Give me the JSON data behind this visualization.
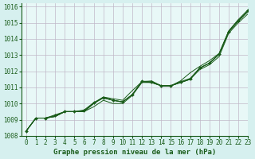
{
  "xlabel": "Graphe pression niveau de la mer (hPa)",
  "xlim": [
    -0.5,
    23
  ],
  "ylim": [
    1008,
    1016.2
  ],
  "yticks": [
    1008,
    1009,
    1010,
    1011,
    1012,
    1013,
    1014,
    1015,
    1016
  ],
  "xticks": [
    0,
    1,
    2,
    3,
    4,
    5,
    6,
    7,
    8,
    9,
    10,
    11,
    12,
    13,
    14,
    15,
    16,
    17,
    18,
    19,
    20,
    21,
    22,
    23
  ],
  "background_color": "#d6f0ef",
  "plot_bg_color": "#e8f8f7",
  "grid_color": "#c0b8c8",
  "line_color": "#1a5c1a",
  "series": [
    [
      1008.3,
      1009.1,
      1009.1,
      1009.2,
      1009.5,
      1009.5,
      1009.5,
      1010.0,
      1010.4,
      1010.2,
      1010.1,
      1010.55,
      1011.35,
      1011.3,
      1011.1,
      1011.1,
      1011.3,
      1011.5,
      1012.2,
      1012.5,
      1013.05,
      1014.45,
      1015.1,
      1015.7
    ],
    [
      1008.3,
      1009.1,
      1009.1,
      1009.3,
      1009.5,
      1009.5,
      1009.6,
      1010.05,
      1010.4,
      1010.3,
      1010.2,
      1010.8,
      1011.35,
      1011.4,
      1011.1,
      1011.1,
      1011.4,
      1011.9,
      1012.3,
      1012.65,
      1013.1,
      1014.5,
      1015.2,
      1015.8
    ],
    [
      1008.3,
      1009.1,
      1009.1,
      1009.2,
      1009.5,
      1009.5,
      1009.5,
      1009.8,
      1010.2,
      1010.0,
      1010.0,
      1010.5,
      1011.3,
      1011.3,
      1011.1,
      1011.1,
      1011.3,
      1011.5,
      1012.1,
      1012.4,
      1012.9,
      1014.35,
      1015.0,
      1015.55
    ],
    [
      1008.3,
      1009.1,
      1009.1,
      1009.2,
      1009.5,
      1009.5,
      1009.5,
      1010.0,
      1010.35,
      1010.2,
      1010.1,
      1010.55,
      1011.35,
      1011.3,
      1011.1,
      1011.1,
      1011.3,
      1011.5,
      1012.2,
      1012.5,
      1013.05,
      1014.45,
      1015.1,
      1015.7
    ]
  ],
  "marker_series": [
    1008.3,
    1009.1,
    1009.1,
    1009.25,
    1009.5,
    1009.5,
    1009.55,
    1010.05,
    1010.35,
    1010.2,
    1010.1,
    1010.55,
    1011.38,
    1011.35,
    1011.1,
    1011.1,
    1011.35,
    1011.55,
    1012.2,
    1012.5,
    1013.05,
    1014.45,
    1015.15,
    1015.75
  ],
  "xlabel_fontsize": 6.5,
  "tick_fontsize": 5.5,
  "ytick_fontsize": 5.5
}
